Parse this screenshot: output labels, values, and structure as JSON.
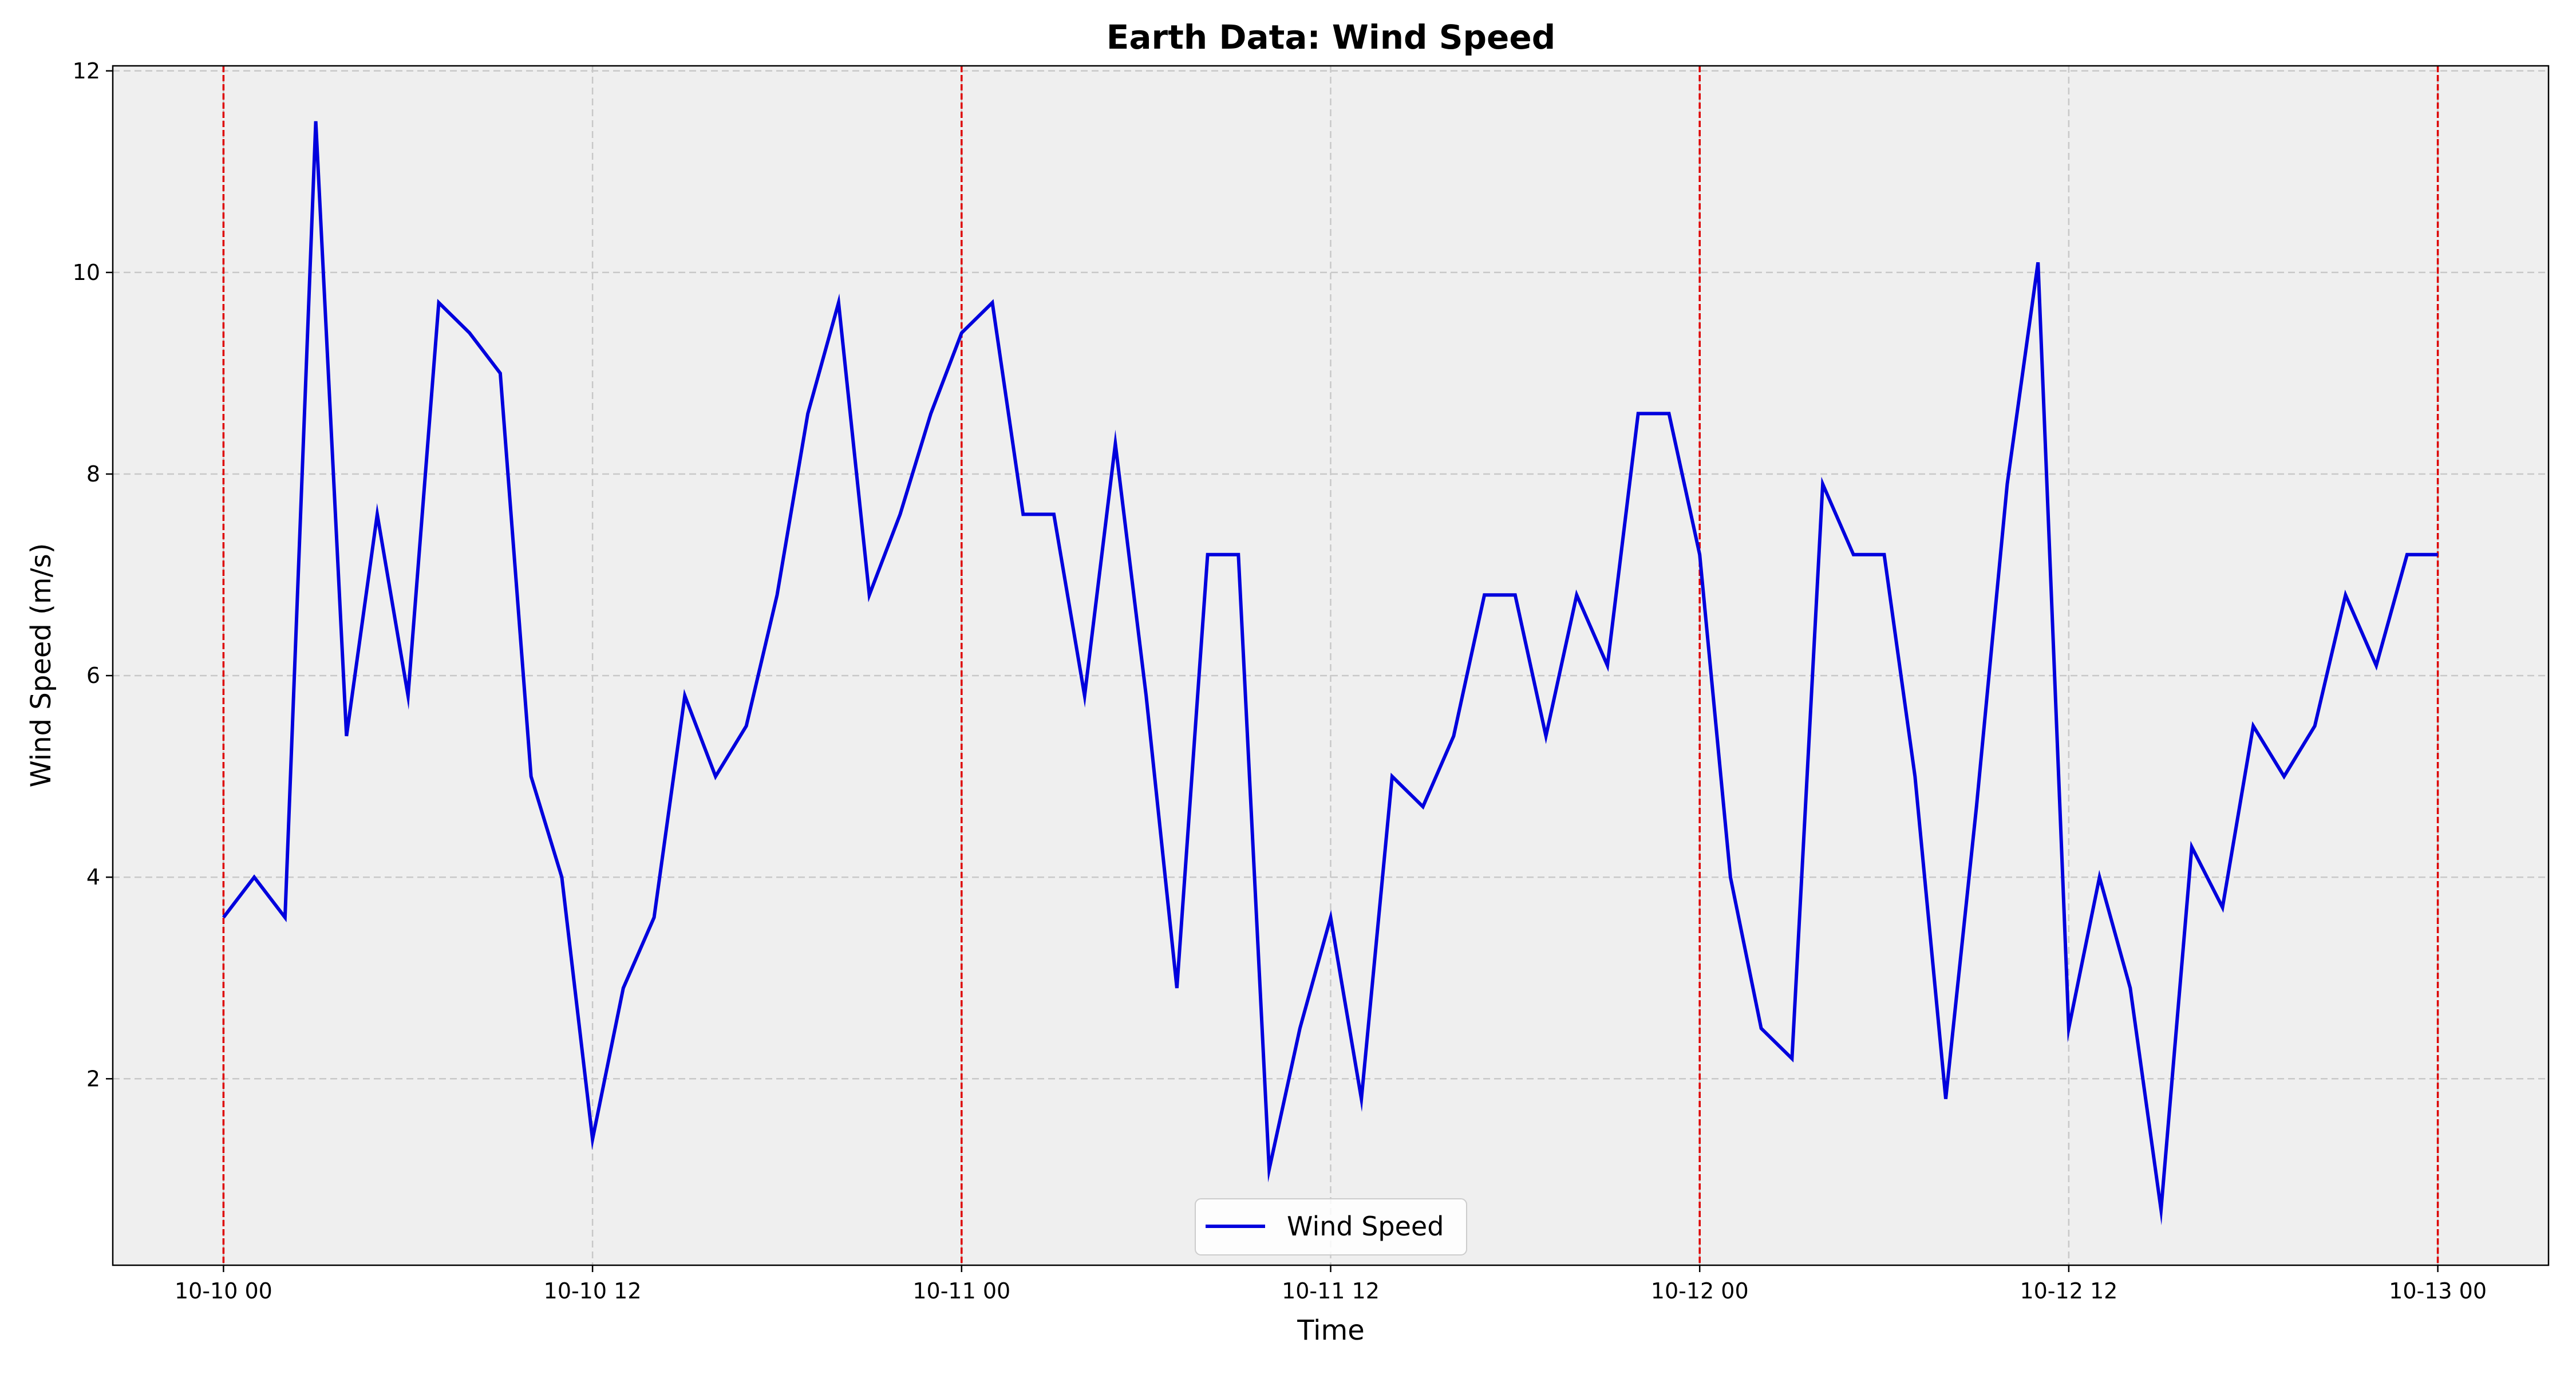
{
  "chart_data": {
    "type": "line",
    "title": "Earth Data: Wind Speed",
    "xlabel": "Time",
    "ylabel": "Wind Speed (m/s)",
    "x_tick_labels": [
      "10-10 00",
      "10-10 12",
      "10-11 00",
      "10-11 12",
      "10-12 00",
      "10-12 12",
      "10-13 00"
    ],
    "y_ticks": [
      2,
      4,
      6,
      8,
      10,
      12
    ],
    "xlim": [
      "2023-10-09 20:24",
      "2023-10-13 03:36"
    ],
    "ylim": [
      0.15,
      12.05
    ],
    "grid": true,
    "legend_position": "bottom-center",
    "day_boundaries": [
      "2023-10-10 00:00",
      "2023-10-11 00:00",
      "2023-10-12 00:00",
      "2023-10-13 00:00"
    ],
    "colors": {
      "series": "#0000dd",
      "day_boundary": "#dd0000",
      "plot_background": "#efefef",
      "grid": "#c8c8c8"
    },
    "x_interval_hours": 1,
    "series": [
      {
        "name": "Wind Speed",
        "x_start": "2023-10-10 00:00",
        "x_end": "2023-10-13 00:00",
        "values": [
          3.6,
          4.0,
          3.6,
          11.5,
          5.4,
          7.6,
          5.8,
          9.7,
          9.4,
          9.0,
          5.0,
          4.0,
          1.4,
          2.9,
          3.6,
          5.8,
          5.0,
          5.5,
          6.8,
          8.6,
          9.7,
          6.8,
          7.6,
          8.6,
          9.4,
          9.7,
          7.6,
          7.6,
          5.8,
          8.3,
          5.8,
          2.9,
          7.2,
          7.2,
          1.1,
          2.5,
          3.6,
          1.8,
          5.0,
          4.7,
          5.4,
          6.8,
          6.8,
          5.4,
          6.8,
          6.1,
          8.6,
          8.6,
          7.2,
          4.0,
          2.5,
          2.2,
          7.9,
          7.2,
          7.2,
          5.0,
          1.8,
          4.7,
          7.9,
          10.1,
          2.5,
          4.0,
          2.9,
          0.7,
          4.3,
          3.7,
          5.5,
          5.0,
          5.5,
          6.8,
          6.1,
          7.2,
          7.2
        ]
      }
    ]
  }
}
